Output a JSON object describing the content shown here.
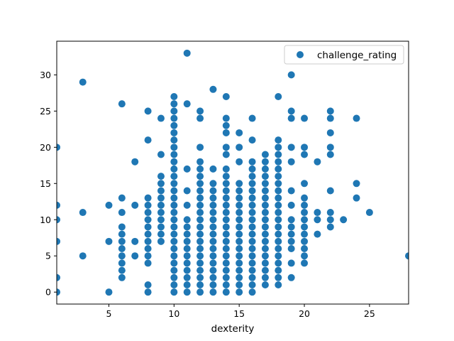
{
  "chart_data": {
    "type": "scatter",
    "title": "",
    "xlabel": "dexterity",
    "ylabel": "",
    "xlim": [
      1,
      28
    ],
    "ylim": [
      -1.65,
      34.65
    ],
    "xticks": [
      5,
      10,
      15,
      20,
      25
    ],
    "yticks": [
      0,
      5,
      10,
      15,
      20,
      25,
      30
    ],
    "grid": false,
    "legend_position": "upper right",
    "series": [
      {
        "name": "challenge_rating",
        "color": "#1f77b4",
        "marker": "circle",
        "points": [
          [
            1,
            0
          ],
          [
            1,
            2
          ],
          [
            1,
            7
          ],
          [
            1,
            10
          ],
          [
            1,
            12
          ],
          [
            1,
            20
          ],
          [
            3,
            5
          ],
          [
            3,
            11
          ],
          [
            3,
            29
          ],
          [
            5,
            0
          ],
          [
            5,
            7
          ],
          [
            5,
            12
          ],
          [
            6,
            2
          ],
          [
            6,
            3
          ],
          [
            6,
            4
          ],
          [
            6,
            5
          ],
          [
            6,
            6
          ],
          [
            6,
            7
          ],
          [
            6,
            8
          ],
          [
            6,
            9
          ],
          [
            6,
            11
          ],
          [
            6,
            13
          ],
          [
            6,
            26
          ],
          [
            7,
            5
          ],
          [
            7,
            7
          ],
          [
            7,
            12
          ],
          [
            7,
            18
          ],
          [
            8,
            0
          ],
          [
            8,
            1
          ],
          [
            8,
            4
          ],
          [
            8,
            5
          ],
          [
            8,
            6
          ],
          [
            8,
            7
          ],
          [
            8,
            8
          ],
          [
            8,
            9
          ],
          [
            8,
            10
          ],
          [
            8,
            11
          ],
          [
            8,
            12
          ],
          [
            8,
            13
          ],
          [
            8,
            21
          ],
          [
            8,
            25
          ],
          [
            9,
            7
          ],
          [
            9,
            8
          ],
          [
            9,
            9
          ],
          [
            9,
            10
          ],
          [
            9,
            11
          ],
          [
            9,
            12
          ],
          [
            9,
            13
          ],
          [
            9,
            14
          ],
          [
            9,
            15
          ],
          [
            9,
            16
          ],
          [
            9,
            19
          ],
          [
            9,
            24
          ],
          [
            10,
            0
          ],
          [
            10,
            1
          ],
          [
            10,
            2
          ],
          [
            10,
            3
          ],
          [
            10,
            4
          ],
          [
            10,
            5
          ],
          [
            10,
            6
          ],
          [
            10,
            7
          ],
          [
            10,
            8
          ],
          [
            10,
            9
          ],
          [
            10,
            10
          ],
          [
            10,
            11
          ],
          [
            10,
            12
          ],
          [
            10,
            13
          ],
          [
            10,
            14
          ],
          [
            10,
            15
          ],
          [
            10,
            16
          ],
          [
            10,
            17
          ],
          [
            10,
            18
          ],
          [
            10,
            19
          ],
          [
            10,
            20
          ],
          [
            10,
            21
          ],
          [
            10,
            22
          ],
          [
            10,
            23
          ],
          [
            10,
            24
          ],
          [
            10,
            25
          ],
          [
            10,
            26
          ],
          [
            10,
            27
          ],
          [
            11,
            0
          ],
          [
            11,
            1
          ],
          [
            11,
            2
          ],
          [
            11,
            3
          ],
          [
            11,
            4
          ],
          [
            11,
            5
          ],
          [
            11,
            6
          ],
          [
            11,
            7
          ],
          [
            11,
            8
          ],
          [
            11,
            9
          ],
          [
            11,
            10
          ],
          [
            11,
            12
          ],
          [
            11,
            14
          ],
          [
            11,
            17
          ],
          [
            11,
            26
          ],
          [
            11,
            33
          ],
          [
            12,
            0
          ],
          [
            12,
            1
          ],
          [
            12,
            2
          ],
          [
            12,
            3
          ],
          [
            12,
            4
          ],
          [
            12,
            5
          ],
          [
            12,
            6
          ],
          [
            12,
            7
          ],
          [
            12,
            8
          ],
          [
            12,
            9
          ],
          [
            12,
            10
          ],
          [
            12,
            11
          ],
          [
            12,
            12
          ],
          [
            12,
            13
          ],
          [
            12,
            14
          ],
          [
            12,
            15
          ],
          [
            12,
            16
          ],
          [
            12,
            17
          ],
          [
            12,
            18
          ],
          [
            12,
            20
          ],
          [
            12,
            24
          ],
          [
            12,
            25
          ],
          [
            13,
            0
          ],
          [
            13,
            1
          ],
          [
            13,
            2
          ],
          [
            13,
            3
          ],
          [
            13,
            4
          ],
          [
            13,
            5
          ],
          [
            13,
            6
          ],
          [
            13,
            7
          ],
          [
            13,
            8
          ],
          [
            13,
            9
          ],
          [
            13,
            10
          ],
          [
            13,
            11
          ],
          [
            13,
            12
          ],
          [
            13,
            13
          ],
          [
            13,
            14
          ],
          [
            13,
            15
          ],
          [
            13,
            17
          ],
          [
            13,
            28
          ],
          [
            14,
            0
          ],
          [
            14,
            1
          ],
          [
            14,
            2
          ],
          [
            14,
            3
          ],
          [
            14,
            4
          ],
          [
            14,
            5
          ],
          [
            14,
            6
          ],
          [
            14,
            7
          ],
          [
            14,
            8
          ],
          [
            14,
            9
          ],
          [
            14,
            10
          ],
          [
            14,
            11
          ],
          [
            14,
            12
          ],
          [
            14,
            13
          ],
          [
            14,
            14
          ],
          [
            14,
            15
          ],
          [
            14,
            16
          ],
          [
            14,
            17
          ],
          [
            14,
            19
          ],
          [
            14,
            20
          ],
          [
            14,
            22
          ],
          [
            14,
            23
          ],
          [
            14,
            24
          ],
          [
            14,
            27
          ],
          [
            15,
            0
          ],
          [
            15,
            1
          ],
          [
            15,
            2
          ],
          [
            15,
            3
          ],
          [
            15,
            4
          ],
          [
            15,
            5
          ],
          [
            15,
            6
          ],
          [
            15,
            7
          ],
          [
            15,
            8
          ],
          [
            15,
            9
          ],
          [
            15,
            10
          ],
          [
            15,
            11
          ],
          [
            15,
            12
          ],
          [
            15,
            13
          ],
          [
            15,
            14
          ],
          [
            15,
            15
          ],
          [
            15,
            18
          ],
          [
            15,
            20
          ],
          [
            15,
            22
          ],
          [
            16,
            0
          ],
          [
            16,
            1
          ],
          [
            16,
            2
          ],
          [
            16,
            3
          ],
          [
            16,
            4
          ],
          [
            16,
            5
          ],
          [
            16,
            6
          ],
          [
            16,
            7
          ],
          [
            16,
            8
          ],
          [
            16,
            9
          ],
          [
            16,
            10
          ],
          [
            16,
            11
          ],
          [
            16,
            12
          ],
          [
            16,
            13
          ],
          [
            16,
            14
          ],
          [
            16,
            15
          ],
          [
            16,
            16
          ],
          [
            16,
            17
          ],
          [
            16,
            18
          ],
          [
            16,
            21
          ],
          [
            16,
            24
          ],
          [
            17,
            1
          ],
          [
            17,
            2
          ],
          [
            17,
            3
          ],
          [
            17,
            4
          ],
          [
            17,
            5
          ],
          [
            17,
            6
          ],
          [
            17,
            7
          ],
          [
            17,
            8
          ],
          [
            17,
            9
          ],
          [
            17,
            10
          ],
          [
            17,
            11
          ],
          [
            17,
            12
          ],
          [
            17,
            13
          ],
          [
            17,
            14
          ],
          [
            17,
            15
          ],
          [
            17,
            16
          ],
          [
            17,
            17
          ],
          [
            17,
            18
          ],
          [
            17,
            19
          ],
          [
            18,
            1
          ],
          [
            18,
            2
          ],
          [
            18,
            3
          ],
          [
            18,
            4
          ],
          [
            18,
            5
          ],
          [
            18,
            6
          ],
          [
            18,
            7
          ],
          [
            18,
            8
          ],
          [
            18,
            9
          ],
          [
            18,
            10
          ],
          [
            18,
            11
          ],
          [
            18,
            12
          ],
          [
            18,
            13
          ],
          [
            18,
            14
          ],
          [
            18,
            15
          ],
          [
            18,
            16
          ],
          [
            18,
            17
          ],
          [
            18,
            18
          ],
          [
            18,
            19
          ],
          [
            18,
            20
          ],
          [
            18,
            21
          ],
          [
            18,
            27
          ],
          [
            19,
            2
          ],
          [
            19,
            4
          ],
          [
            19,
            6
          ],
          [
            19,
            7
          ],
          [
            19,
            8
          ],
          [
            19,
            9
          ],
          [
            19,
            10
          ],
          [
            19,
            12
          ],
          [
            19,
            14
          ],
          [
            19,
            18
          ],
          [
            19,
            20
          ],
          [
            19,
            24
          ],
          [
            19,
            25
          ],
          [
            19,
            30
          ],
          [
            20,
            4
          ],
          [
            20,
            5
          ],
          [
            20,
            6
          ],
          [
            20,
            7
          ],
          [
            20,
            8
          ],
          [
            20,
            9
          ],
          [
            20,
            10
          ],
          [
            20,
            11
          ],
          [
            20,
            12
          ],
          [
            20,
            13
          ],
          [
            20,
            15
          ],
          [
            20,
            19
          ],
          [
            20,
            20
          ],
          [
            20,
            24
          ],
          [
            21,
            8
          ],
          [
            21,
            10
          ],
          [
            21,
            11
          ],
          [
            21,
            18
          ],
          [
            22,
            9
          ],
          [
            22,
            10
          ],
          [
            22,
            11
          ],
          [
            22,
            14
          ],
          [
            22,
            19
          ],
          [
            22,
            20
          ],
          [
            22,
            22
          ],
          [
            22,
            24
          ],
          [
            22,
            25
          ],
          [
            23,
            10
          ],
          [
            24,
            13
          ],
          [
            24,
            15
          ],
          [
            24,
            24
          ],
          [
            25,
            11
          ],
          [
            28,
            5
          ]
        ]
      }
    ]
  }
}
